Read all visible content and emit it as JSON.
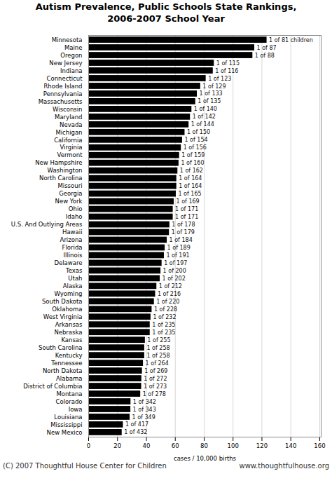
{
  "chart_data": {
    "type": "bar",
    "orientation": "horizontal",
    "title": "Autism Prevalence, Public Schools State Rankings,\n2006-2007 School Year",
    "xlabel": "cases / 10,000 births",
    "annotations": [
      "(C) 2007 Thoughtful House Center for Children",
      "www.thoughtfulhouse.org"
    ],
    "categories": [
      "Minnesota",
      "Maine",
      "Oregon",
      "New Jersey",
      "Indiana",
      "Connecticut",
      "Rhode Island",
      "Pennsylvania",
      "Massachusetts",
      "Wisconsin",
      "Maryland",
      "Nevada",
      "Michigan",
      "California",
      "Virginia",
      "Vermont",
      "New Hampshire",
      "Washington",
      "North Carolina",
      "Missouri",
      "Georgia",
      "New York",
      "Ohio",
      "Idaho",
      "U.S. And Outlying Areas",
      "Hawaii",
      "Arizona",
      "Florida",
      "Illinois",
      "Delaware",
      "Texas",
      "Utah",
      "Alaska",
      "Wyoming",
      "South Dakota",
      "Oklahoma",
      "West Virginia",
      "Arkansas",
      "Nebraska",
      "Kansas",
      "South Carolina",
      "Kentucky",
      "Tennessee",
      "North Dakota",
      "Alabama",
      "District of Columbia",
      "Montana",
      "Colorado",
      "Iowa",
      "Louisiana",
      "Mississippi",
      "New Mexico"
    ],
    "values": [
      123.45679012345678,
      114.94252873563218,
      113.63636363636364,
      86.95652173913044,
      86.20689655172414,
      81.30081300813008,
      77.51937984496124,
      75.18796992481202,
      74.07407407407408,
      71.42857142857143,
      70.4225352112676,
      69.44444444444444,
      66.66666666666667,
      64.93506493506493,
      64.1025641025641,
      62.893081761006286,
      62.5,
      61.72839506172839,
      60.97560975609756,
      60.97560975609756,
      60.60606060606061,
      59.171597633136095,
      58.47953216374269,
      58.47953216374269,
      56.17977528089887,
      55.865921787709496,
      54.34782608695652,
      52.91005291005291,
      52.35602094240838,
      50.76142131979695,
      50,
      49.504950495049506,
      47.16981132075472,
      46.2962962962963,
      45.45454545454545,
      43.85964912280702,
      43.10344827586207,
      42.5531914893617,
      42.5531914893617,
      39.21568627450981,
      38.75968992248062,
      38.75968992248062,
      37.878787878787875,
      37.174721189591075,
      36.76470588235294,
      36.63003663003663,
      35.97122302158273,
      29.239766081871345,
      29.154518950437318,
      28.653295128939828,
      23.980815347721823,
      23.14814814814815
    ],
    "value_labels": [
      "1 of 81 children",
      "1 of 87",
      "1 of 88",
      "1 of 115",
      "1 of 116",
      "1 of 123",
      "1 of 129",
      "1 of 133",
      "1 of 135",
      "1 of 140",
      "1 of 142",
      "1 of 144",
      "1 of 150",
      "1 of 154",
      "1 of 156",
      "1 of 159",
      "1 of 160",
      "1 of 162",
      "1 of 164",
      "1 of 164",
      "1 of 165",
      "1 of 169",
      "1 of 171",
      "1 of 171",
      "1 of 178",
      "1 of 179",
      "1 of 184",
      "1 of 189",
      "1 of 191",
      "1 of 197",
      "1 of 200",
      "1 of 202",
      "1 of 212",
      "1 of 216",
      "1 of 220",
      "1 of 228",
      "1 of 232",
      "1 of 235",
      "1 of 235",
      "1 of 255",
      "1 of 258",
      "1 of 258",
      "1 of 264",
      "1 of 269",
      "1 of 272",
      "1 of 273",
      "1 of 278",
      "1 of 342",
      "1 of 343",
      "1 of 349",
      "1 of 417",
      "1 of 432"
    ],
    "xlim": [
      0,
      161
    ],
    "xticks": [
      0,
      20,
      40,
      60,
      80,
      100,
      120,
      140,
      160
    ],
    "grid": true
  }
}
